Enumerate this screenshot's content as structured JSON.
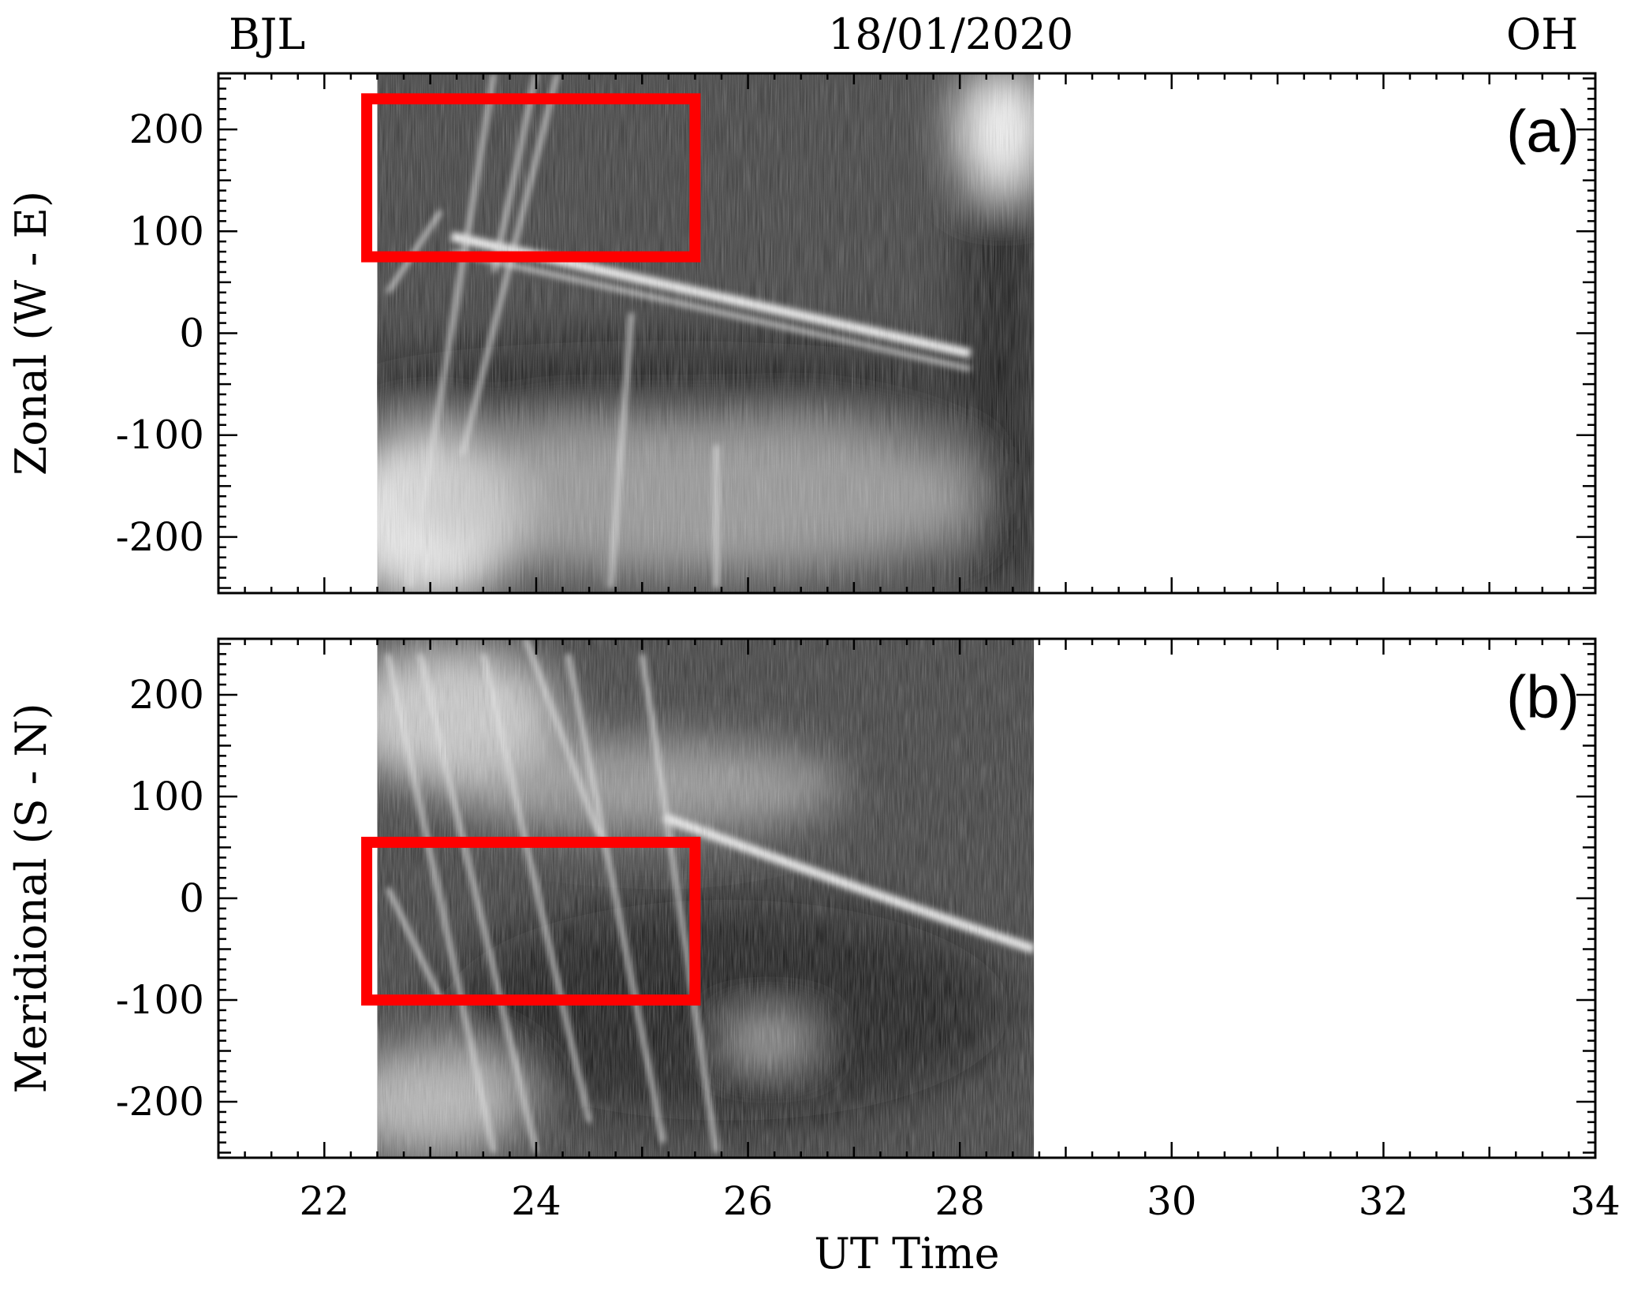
{
  "header": {
    "left": "BJL",
    "center": "18/01/2020",
    "right": "OH"
  },
  "chart_data": [
    {
      "type": "heatmap",
      "panel_label": "(a)",
      "xlabel": "",
      "ylabel": "Zonal (W - E)",
      "xlim": [
        21,
        34
      ],
      "ylim": [
        -255,
        255
      ],
      "yticks": [
        200,
        100,
        0,
        -100,
        -200
      ],
      "data_extent_x": [
        22.5,
        28.7
      ],
      "colormap": "grayscale",
      "annotations": [
        {
          "type": "rectangle",
          "color": "#ff0000",
          "x": [
            22.4,
            25.5
          ],
          "y": [
            75,
            230
          ]
        }
      ]
    },
    {
      "type": "heatmap",
      "panel_label": "(b)",
      "xlabel": "UT Time",
      "ylabel": "Meridional (S - N)",
      "xlim": [
        21,
        34
      ],
      "ylim": [
        -255,
        255
      ],
      "xticks": [
        22,
        24,
        26,
        28,
        30,
        32,
        34
      ],
      "yticks": [
        200,
        100,
        0,
        -100,
        -200
      ],
      "data_extent_x": [
        22.5,
        28.7
      ],
      "colormap": "grayscale",
      "annotations": [
        {
          "type": "rectangle",
          "color": "#ff0000",
          "x": [
            22.4,
            25.5
          ],
          "y": [
            -100,
            55
          ]
        }
      ]
    }
  ]
}
